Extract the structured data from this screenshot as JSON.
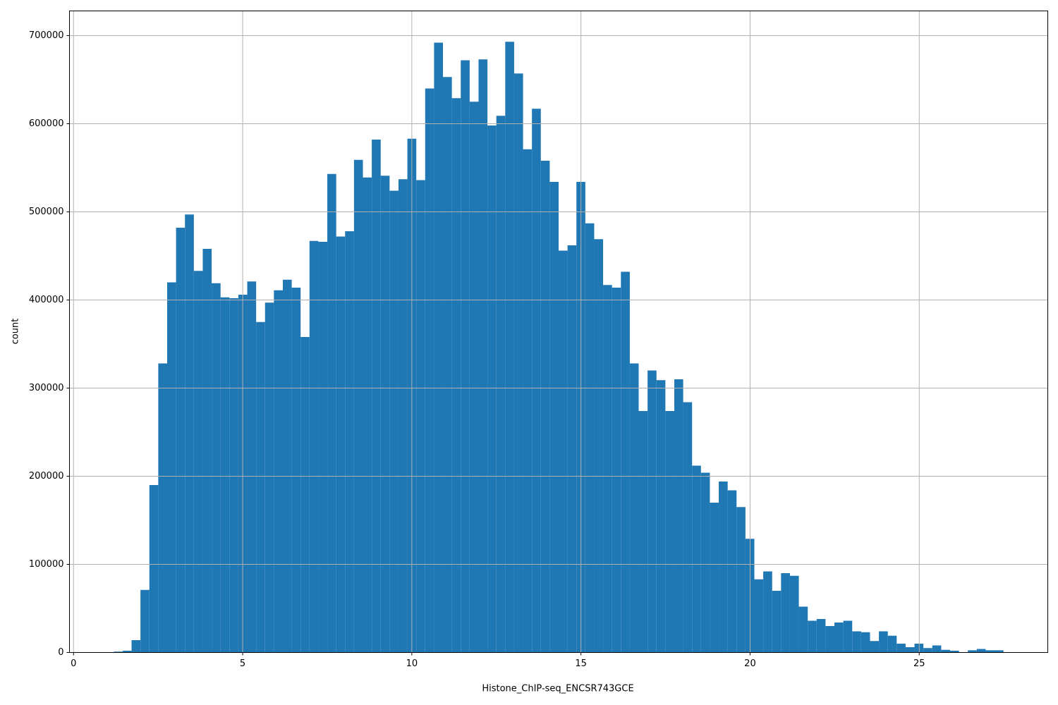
{
  "chart_data": {
    "type": "histogram",
    "xlabel": "Histone_ChIP-seq_ENCSR743GCE",
    "ylabel": "count",
    "color": "#1f77b4",
    "grid": true,
    "xlim": [
      -0.12,
      28.8
    ],
    "ylim": [
      0,
      728000
    ],
    "xticks": [
      0,
      5,
      10,
      15,
      20,
      25
    ],
    "yticks": [
      0,
      100000,
      200000,
      300000,
      400000,
      500000,
      600000,
      700000
    ],
    "bins": [
      1.19,
      1.453,
      1.716,
      1.979,
      2.242,
      2.505,
      2.768,
      3.031,
      3.294,
      3.557,
      3.82,
      4.083,
      4.346,
      4.609,
      4.872,
      5.135,
      5.398,
      5.661,
      5.924,
      6.187,
      6.45,
      6.713,
      6.976,
      7.239,
      7.502,
      7.765,
      8.028,
      8.291,
      8.554,
      8.817,
      9.08,
      9.343,
      9.606,
      9.869,
      10.132,
      10.395,
      10.658,
      10.921,
      11.184,
      11.447,
      11.71,
      11.973,
      12.236,
      12.499,
      12.762,
      13.025,
      13.288,
      13.551,
      13.814,
      14.077,
      14.34,
      14.603,
      14.866,
      15.129,
      15.392,
      15.655,
      15.918,
      16.181,
      16.444,
      16.707,
      16.97,
      17.233,
      17.496,
      17.759,
      18.022,
      18.285,
      18.548,
      18.811,
      19.074,
      19.337,
      19.6,
      19.863,
      20.126,
      20.389,
      20.652,
      20.915,
      21.178,
      21.441,
      21.704,
      21.967,
      22.23,
      22.493,
      22.756,
      23.019,
      23.282,
      23.545,
      23.808,
      24.071,
      24.334,
      24.597,
      24.86,
      25.123,
      25.386,
      25.649,
      25.912,
      26.175,
      26.438,
      26.701,
      26.964,
      27.227,
      27.49
    ],
    "values": [
      1000,
      2000,
      14000,
      71000,
      190000,
      328000,
      420000,
      482000,
      497000,
      433000,
      458000,
      419000,
      403000,
      402000,
      406000,
      421000,
      375000,
      397000,
      411000,
      423000,
      414000,
      358000,
      467000,
      466000,
      543000,
      472000,
      478000,
      559000,
      539000,
      582000,
      541000,
      524000,
      537000,
      583000,
      536000,
      640000,
      692000,
      653000,
      629000,
      672000,
      625000,
      673000,
      598000,
      609000,
      693000,
      657000,
      571000,
      617000,
      558000,
      534000,
      456000,
      462000,
      534000,
      487000,
      469000,
      417000,
      414000,
      432000,
      328000,
      274000,
      320000,
      309000,
      274000,
      310000,
      284000,
      212000,
      204000,
      170000,
      194000,
      184000,
      165000,
      129000,
      83000,
      92000,
      70000,
      90000,
      87000,
      52000,
      36000,
      38000,
      30000,
      34000,
      36000,
      24000,
      23000,
      13000,
      24000,
      19000,
      10000,
      6000,
      10000,
      5000,
      8000,
      3000,
      2000,
      0,
      2500,
      4000,
      2500,
      2500
    ]
  }
}
